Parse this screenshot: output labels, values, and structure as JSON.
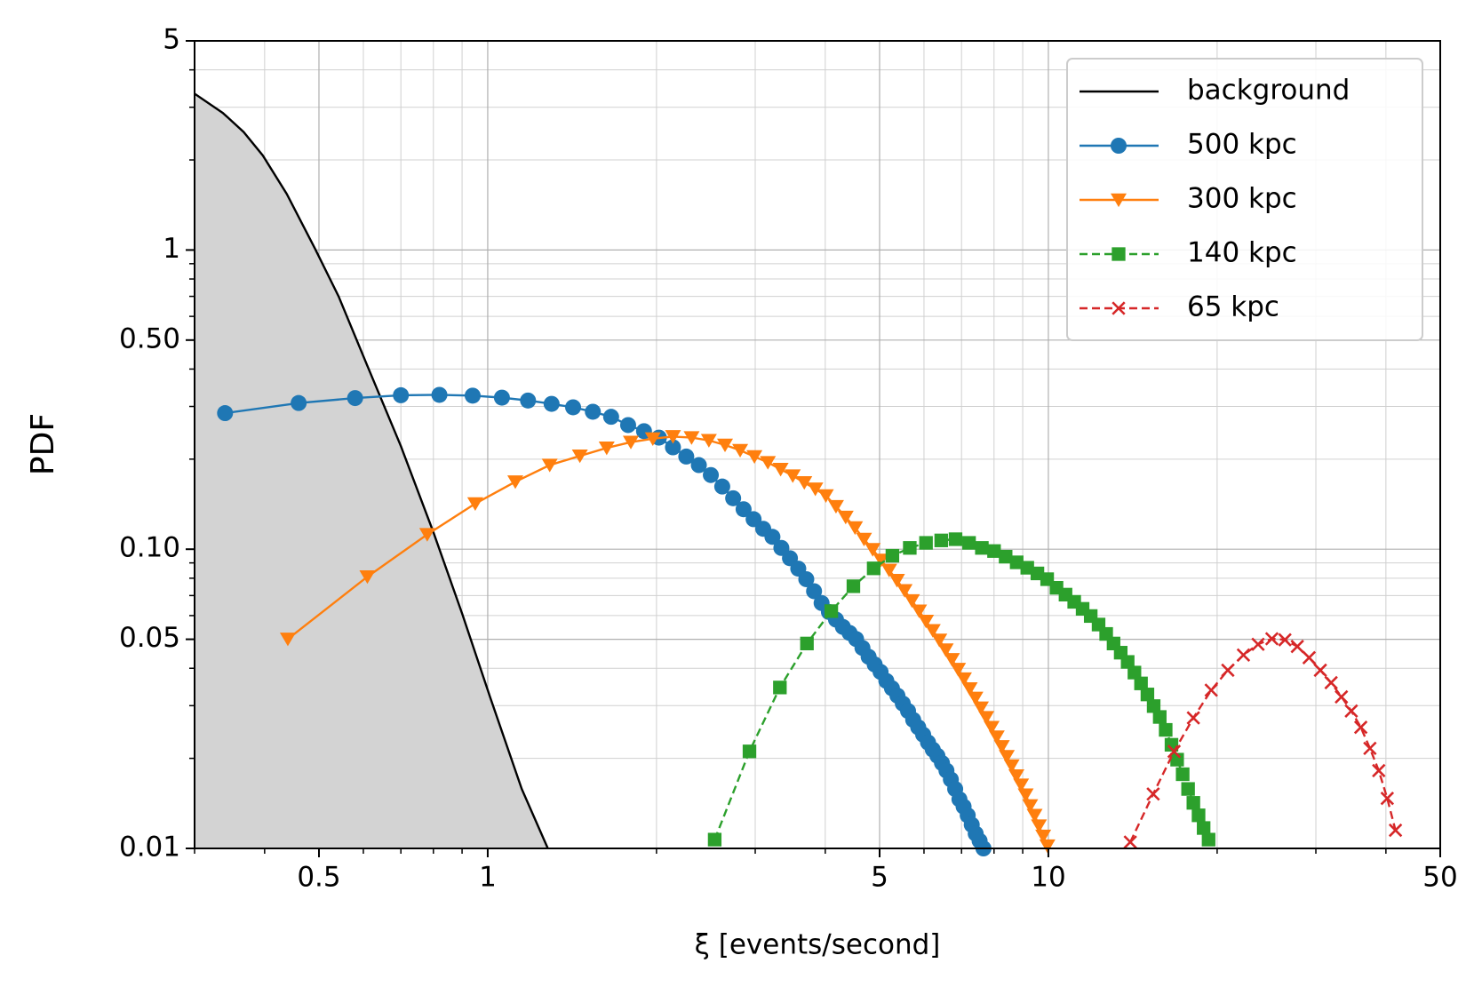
{
  "chart_data": {
    "type": "line",
    "xlabel": "ξ [events/second]",
    "ylabel": "PDF",
    "xscale": "log",
    "yscale": "log",
    "xlim": [
      0.3,
      50
    ],
    "ylim": [
      0.01,
      5
    ],
    "xticks": [
      0.5,
      1,
      5,
      10,
      50
    ],
    "yticks": [
      0.01,
      0.05,
      {
        "value": 0.1,
        "label": "0.10"
      },
      {
        "value": 0.5,
        "label": "0.50"
      },
      1,
      5
    ],
    "xminorticks": [
      0.3,
      0.4,
      0.6,
      0.7,
      0.8,
      0.9,
      2,
      3,
      4,
      6,
      7,
      8,
      9,
      20,
      30,
      40
    ],
    "yminorticks": [
      0.02,
      0.03,
      0.04,
      0.06,
      0.07,
      0.08,
      0.09,
      0.2,
      0.3,
      0.4,
      0.6,
      0.7,
      0.8,
      0.9,
      2,
      3,
      4
    ],
    "grid": true,
    "legend": "upper right",
    "series": [
      {
        "name": "background",
        "color": "#000000",
        "marker": "none",
        "linestyle": "solid",
        "fill_color": "#d3d3d3",
        "x": [
          0.3,
          0.337,
          0.367,
          0.397,
          0.438,
          0.492,
          0.542,
          0.61,
          0.7,
          0.8,
          0.9,
          1.01,
          1.15,
          1.28
        ],
        "values": [
          3.33,
          2.87,
          2.48,
          2.07,
          1.54,
          1.01,
          0.7,
          0.41,
          0.221,
          0.114,
          0.061,
          0.032,
          0.0158,
          0.01
        ]
      },
      {
        "name": "500 kpc",
        "color": "#1f77b4",
        "marker": "circle",
        "linestyle": "solid",
        "x": [
          0.34,
          0.46,
          0.58,
          0.7,
          0.82,
          0.94,
          1.06,
          1.18,
          1.3,
          1.42,
          1.54,
          1.66,
          1.78,
          1.9,
          2.02,
          2.14,
          2.26,
          2.38,
          2.5,
          2.62,
          2.74,
          2.86,
          2.98,
          3.1,
          3.22,
          3.34,
          3.46,
          3.58,
          3.7,
          3.82,
          3.94,
          4.06,
          4.18,
          4.3,
          4.42,
          4.54,
          4.66,
          4.78,
          4.9,
          5.02,
          5.14,
          5.26,
          5.38,
          5.5,
          5.62,
          5.74,
          5.86,
          5.98,
          6.1,
          6.22,
          6.34,
          6.46,
          6.58,
          6.7,
          6.82,
          6.94,
          7.06,
          7.18,
          7.3,
          7.42,
          7.54,
          7.66
        ],
        "values": [
          0.285,
          0.308,
          0.32,
          0.327,
          0.328,
          0.326,
          0.321,
          0.314,
          0.306,
          0.298,
          0.288,
          0.277,
          0.26,
          0.248,
          0.236,
          0.219,
          0.204,
          0.191,
          0.177,
          0.162,
          0.148,
          0.136,
          0.126,
          0.117,
          0.11,
          0.101,
          0.0933,
          0.0861,
          0.0794,
          0.0724,
          0.0661,
          0.0617,
          0.0582,
          0.055,
          0.0525,
          0.0501,
          0.0468,
          0.0437,
          0.0412,
          0.0389,
          0.0363,
          0.0343,
          0.0324,
          0.0305,
          0.0288,
          0.0269,
          0.0254,
          0.024,
          0.0226,
          0.0214,
          0.0204,
          0.0193,
          0.0182,
          0.017,
          0.0158,
          0.0146,
          0.0138,
          0.0129,
          0.012,
          0.0112,
          0.0106,
          0.01
        ]
      },
      {
        "name": "300 kpc",
        "color": "#ff7f0e",
        "marker": "triangle-down",
        "linestyle": "solid",
        "x": [
          0.44,
          0.61,
          0.78,
          0.95,
          1.12,
          1.29,
          1.46,
          1.63,
          1.8,
          1.97,
          2.14,
          2.31,
          2.48,
          2.65,
          2.82,
          2.99,
          3.16,
          3.33,
          3.5,
          3.67,
          3.84,
          4.01,
          4.18,
          4.35,
          4.52,
          4.69,
          4.86,
          5.03,
          5.2,
          5.37,
          5.54,
          5.71,
          5.88,
          6.05,
          6.22,
          6.39,
          6.56,
          6.73,
          6.9,
          7.07,
          7.24,
          7.41,
          7.58,
          7.75,
          7.92,
          8.09,
          8.26,
          8.43,
          8.6,
          8.77,
          8.94,
          9.11,
          9.28,
          9.45,
          9.62,
          9.79,
          9.96
        ],
        "values": [
          0.0501,
          0.0809,
          0.112,
          0.142,
          0.168,
          0.191,
          0.205,
          0.218,
          0.228,
          0.234,
          0.238,
          0.236,
          0.231,
          0.223,
          0.214,
          0.204,
          0.195,
          0.185,
          0.176,
          0.167,
          0.159,
          0.151,
          0.139,
          0.128,
          0.118,
          0.108,
          0.0998,
          0.092,
          0.0851,
          0.0787,
          0.0728,
          0.0673,
          0.0622,
          0.0575,
          0.0535,
          0.0497,
          0.0461,
          0.0428,
          0.0397,
          0.0369,
          0.0342,
          0.0318,
          0.0295,
          0.0274,
          0.0254,
          0.0236,
          0.0219,
          0.0203,
          0.0189,
          0.0175,
          0.0163,
          0.0151,
          0.0139,
          0.0129,
          0.0119,
          0.011,
          0.0102
        ]
      },
      {
        "name": "140 kpc",
        "color": "#2ca02c",
        "marker": "square",
        "linestyle": "dashed",
        "x": [
          2.54,
          2.93,
          3.32,
          3.71,
          4.1,
          4.49,
          4.88,
          5.27,
          5.66,
          6.05,
          6.44,
          6.83,
          7.22,
          7.61,
          8,
          8.39,
          8.78,
          9.17,
          9.56,
          9.95,
          10.34,
          10.73,
          11.12,
          11.51,
          11.9,
          12.29,
          12.68,
          13.07,
          13.46,
          13.85,
          14.24,
          14.63,
          15.02,
          15.41,
          15.8,
          16.19,
          16.58,
          16.97,
          17.36,
          17.75,
          18.14,
          18.53,
          18.92,
          19.31
        ],
        "values": [
          0.0107,
          0.0211,
          0.0345,
          0.0484,
          0.0621,
          0.0752,
          0.0863,
          0.0951,
          0.101,
          0.105,
          0.107,
          0.108,
          0.105,
          0.101,
          0.0986,
          0.0944,
          0.0904,
          0.0867,
          0.083,
          0.0794,
          0.0743,
          0.0705,
          0.0667,
          0.0632,
          0.0598,
          0.056,
          0.0521,
          0.0484,
          0.0451,
          0.042,
          0.0387,
          0.0356,
          0.0327,
          0.0299,
          0.0275,
          0.0249,
          0.0222,
          0.0198,
          0.0177,
          0.0158,
          0.0142,
          0.0129,
          0.0117,
          0.0107
        ]
      },
      {
        "name": "65 kpc",
        "color": "#d62728",
        "marker": "x",
        "linestyle": "dashed",
        "x": [
          14,
          15.38,
          16.76,
          18.14,
          19.52,
          20.9,
          22.28,
          23.66,
          25.04,
          26.42,
          27.8,
          29.18,
          30.56,
          31.94,
          33.32,
          34.7,
          36.08,
          37.46,
          38.84,
          40.22,
          41.6
        ],
        "values": [
          0.0105,
          0.0152,
          0.0211,
          0.0273,
          0.0338,
          0.0394,
          0.0443,
          0.0481,
          0.0502,
          0.0498,
          0.0473,
          0.0434,
          0.0394,
          0.0358,
          0.0321,
          0.0288,
          0.0254,
          0.0216,
          0.0182,
          0.0147,
          0.0115
        ]
      }
    ]
  }
}
